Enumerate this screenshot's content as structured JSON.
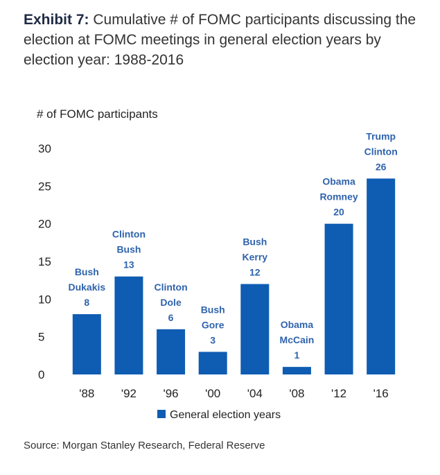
{
  "header": {
    "exhibit_label": "Exhibit 7:",
    "title": "Cumulative # of FOMC participants discussing the election at FOMC meetings in general election years by election year: 1988-2016"
  },
  "chart_data": {
    "type": "bar",
    "categories": [
      "'88",
      "'92",
      "'96",
      "'00",
      "'04",
      "'08",
      "'12",
      "'16"
    ],
    "series": [
      {
        "name": "General election years",
        "values": [
          8,
          13,
          6,
          3,
          12,
          1,
          20,
          26
        ]
      }
    ],
    "annotations": [
      [
        "Bush",
        "Dukakis"
      ],
      [
        "Clinton",
        "Bush"
      ],
      [
        "Clinton",
        "Dole"
      ],
      [
        "Bush",
        "Gore"
      ],
      [
        "Bush",
        "Kerry"
      ],
      [
        "Obama",
        "McCain"
      ],
      [
        "Obama",
        "Romney"
      ],
      [
        "Trump",
        "Clinton"
      ]
    ],
    "ylabel": "# of FOMC participants",
    "xlabel": "",
    "ylim": [
      0,
      30
    ],
    "yticks": [
      0,
      5,
      10,
      15,
      20,
      25,
      30
    ],
    "grid": false,
    "legend_placement": "bottom-center",
    "bar_color": "#0f5cb3",
    "label_color": "#2f63ad"
  },
  "footer": {
    "source": "Source: Morgan Stanley Research, Federal Reserve"
  }
}
